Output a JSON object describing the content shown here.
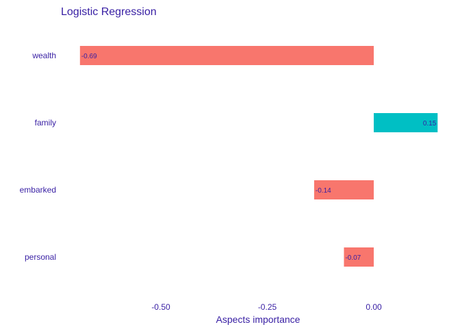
{
  "chart_data": {
    "type": "bar",
    "orientation": "horizontal",
    "title": "Logistic Regression",
    "xlabel": "Aspects importance",
    "ylabel": "",
    "categories": [
      "wealth",
      "family",
      "embarked",
      "personal"
    ],
    "values": [
      -0.69,
      0.15,
      -0.14,
      -0.07
    ],
    "value_labels": [
      "-0.69",
      "0.15",
      "-0.14",
      "-0.07"
    ],
    "xticks": [
      -0.5,
      -0.25,
      0.0
    ],
    "xtick_labels": [
      "-0.50",
      "-0.25",
      "0.00"
    ],
    "xlim": [
      -0.75,
      0.15
    ],
    "grid": false,
    "legend": "none",
    "colors": {
      "negative": "#F8766D",
      "positive": "#00BFC4",
      "text": "#371EA3"
    }
  }
}
